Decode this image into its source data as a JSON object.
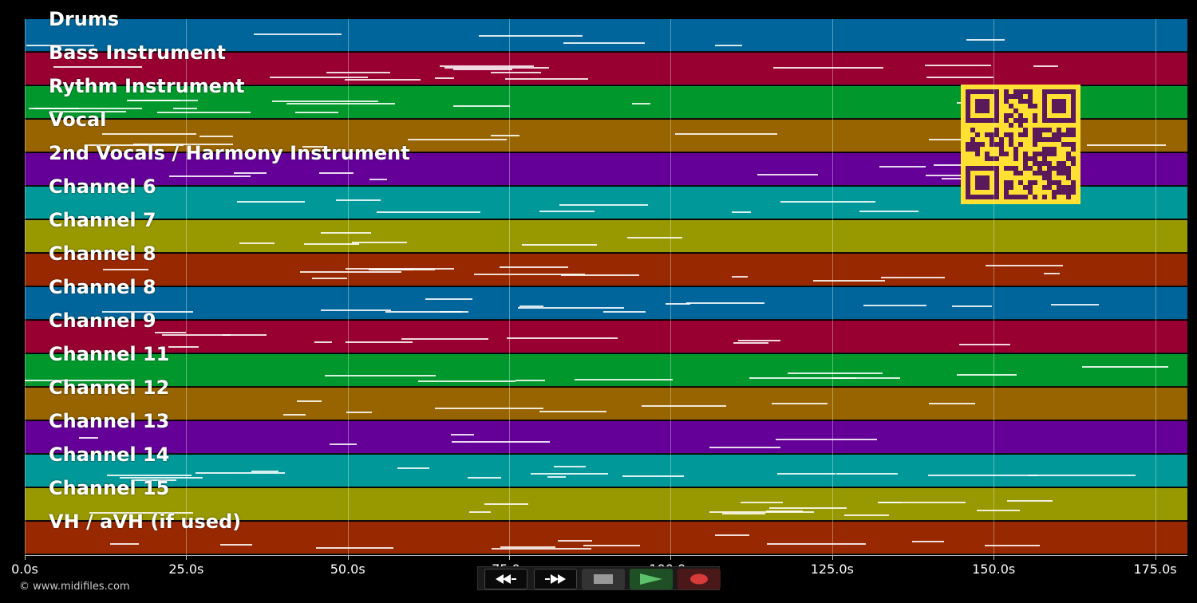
{
  "lanes": [
    {
      "label": "Drums",
      "color": "#00659a"
    },
    {
      "label": "Bass Instrument",
      "color": "#980032"
    },
    {
      "label": "Rythm Instrument",
      "color": "#00982c"
    },
    {
      "label": "Vocal",
      "color": "#986400"
    },
    {
      "label": "2nd Vocals / Harmony Instrument",
      "color": "#640098"
    },
    {
      "label": "Channel 6",
      "color": "#009898"
    },
    {
      "label": "Channel 7",
      "color": "#989800"
    },
    {
      "label": "Channel 8",
      "color": "#982800"
    },
    {
      "label": "Channel 8",
      "color": "#00659a"
    },
    {
      "label": "Channel 9",
      "color": "#980032"
    },
    {
      "label": "Channel 11",
      "color": "#00982c"
    },
    {
      "label": "Channel 12",
      "color": "#986400"
    },
    {
      "label": "Channel 13",
      "color": "#640098"
    },
    {
      "label": "Channel 14",
      "color": "#009898"
    },
    {
      "label": "Channel 15",
      "color": "#989800"
    },
    {
      "label": "VH / aVH (if used)",
      "color": "#982800"
    }
  ],
  "axis": {
    "ticks": [
      "0.0s",
      "25.0s",
      "50.0s",
      "75.0s",
      "100.0s",
      "125.0s",
      "150.0s",
      "175.0s"
    ],
    "tick_values": [
      0,
      25,
      50,
      75,
      100,
      125,
      150,
      175
    ],
    "max_seconds": 180
  },
  "copyright": "© www.midifiles.com",
  "transport": {
    "rewind_icon": "rewind-icon",
    "fast_forward_icon": "fast-forward-icon",
    "stop_icon": "stop-icon",
    "play_icon": "play-icon",
    "record_icon": "record-icon"
  },
  "qr_code": {
    "icon": "qr-code-icon",
    "color": "#ffe033",
    "dark": "#5a1a5a"
  }
}
